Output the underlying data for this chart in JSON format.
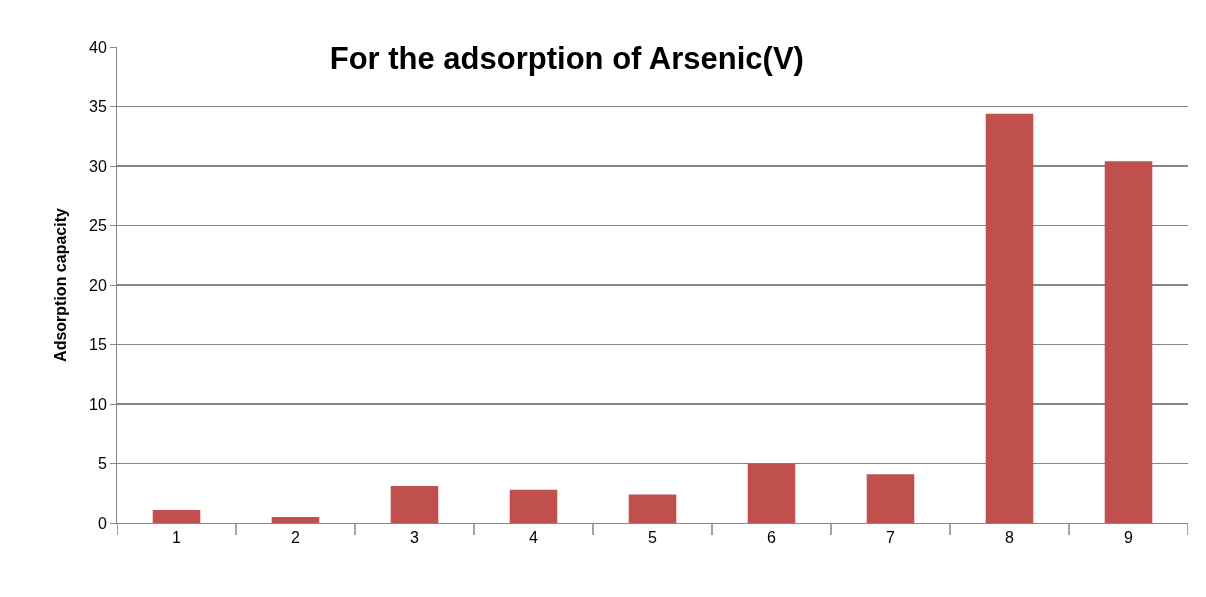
{
  "chart_data": {
    "type": "bar",
    "title": "For the adsorption of Arsenic(V)",
    "ylabel": "Adsorption capacity",
    "categories": [
      "1",
      "2",
      "3",
      "4",
      "5",
      "6",
      "7",
      "8",
      "9"
    ],
    "values": [
      1.1,
      0.5,
      3.1,
      2.8,
      2.4,
      5,
      4.1,
      34.4,
      30.4
    ],
    "color": "#c0504d",
    "ylim": [
      0,
      40
    ],
    "yticks": [
      0,
      5,
      10,
      15,
      20,
      25,
      30,
      35,
      40
    ],
    "grid": "y",
    "legend": false
  }
}
